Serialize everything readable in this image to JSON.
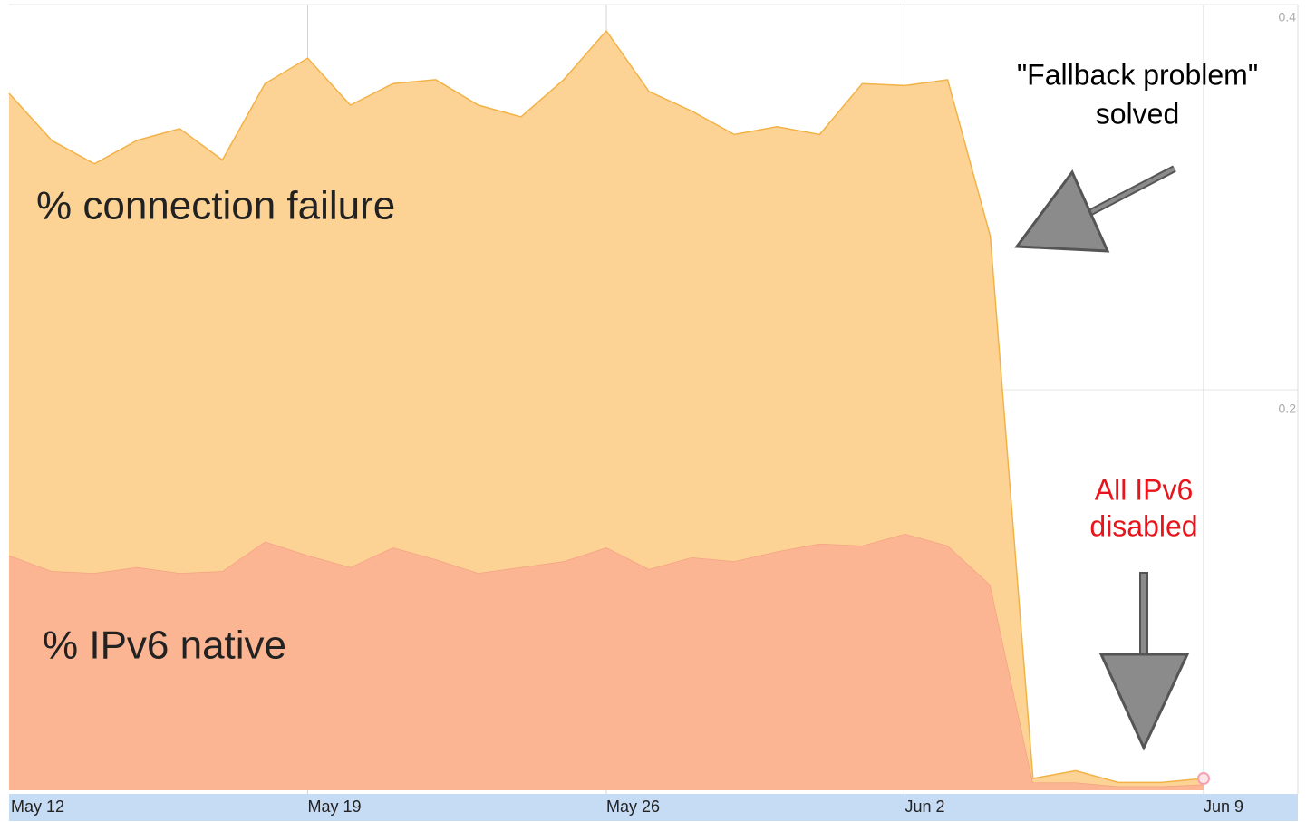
{
  "chart_data": {
    "type": "stacked_area",
    "categories": [
      "May 12",
      null,
      null,
      null,
      null,
      null,
      null,
      "May 19",
      null,
      null,
      null,
      null,
      null,
      null,
      "May 26",
      null,
      null,
      null,
      null,
      null,
      null,
      "Jun 2",
      null,
      null,
      null,
      null,
      null,
      null,
      "Jun 9"
    ],
    "series": [
      {
        "name": "% IPv6 native",
        "color": "#fbb593",
        "line_color": "#f4a283",
        "values": [
          0.12,
          0.112,
          0.111,
          0.114,
          0.111,
          0.112,
          0.127,
          0.12,
          0.114,
          0.124,
          0.118,
          0.111,
          0.114,
          0.117,
          0.124,
          0.113,
          0.119,
          0.117,
          0.122,
          0.126,
          0.125,
          0.131,
          0.125,
          0.105,
          0.004,
          0.004,
          0.002,
          0.002,
          0.003
        ]
      },
      {
        "name": "% connection failure",
        "color": "#fcd395",
        "line_color": "#f2b247",
        "values": [
          0.236,
          0.22,
          0.209,
          0.218,
          0.227,
          0.21,
          0.234,
          0.254,
          0.236,
          0.237,
          0.245,
          0.239,
          0.23,
          0.246,
          0.264,
          0.244,
          0.228,
          0.218,
          0.217,
          0.209,
          0.236,
          0.229,
          0.238,
          0.178,
          0.002,
          0.006,
          0.002,
          0.002,
          0.003
        ]
      }
    ],
    "ylim": [
      0,
      0.4
    ],
    "yticks": [
      0.2,
      0.4
    ],
    "grid": true,
    "annotations": [
      {
        "lines": [
          "\"Fallback problem\"",
          "solved"
        ],
        "color": "#000000"
      },
      {
        "lines": [
          "All IPv6",
          "disabled"
        ],
        "color": "#e8141b"
      }
    ]
  }
}
